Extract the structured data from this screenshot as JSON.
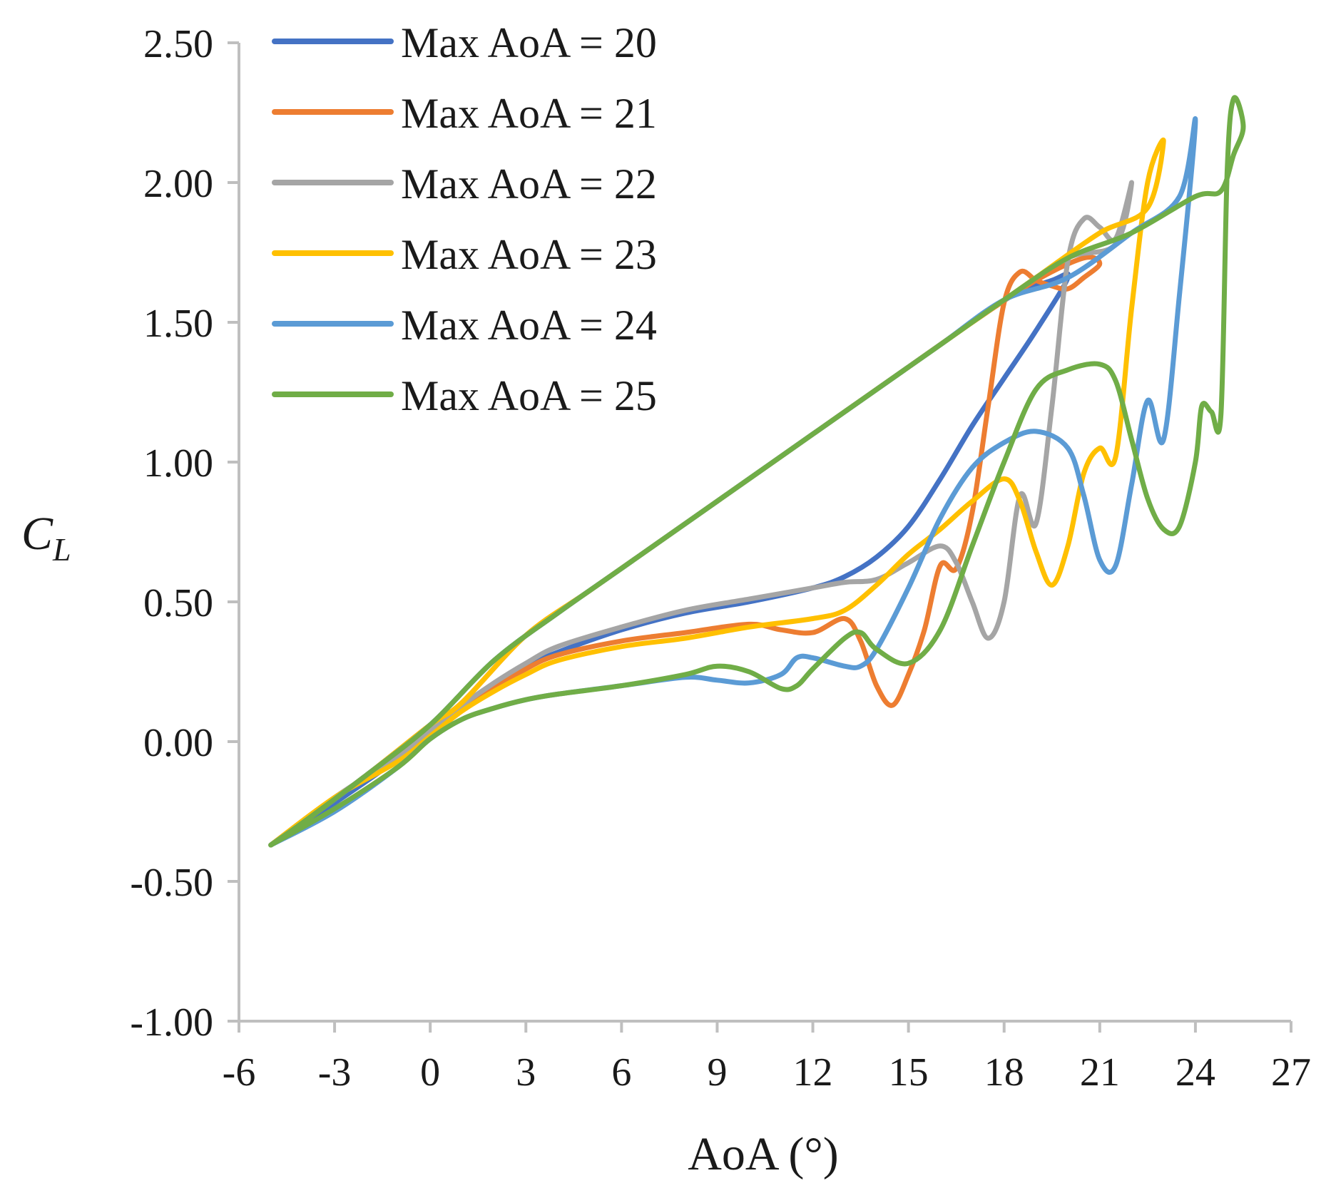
{
  "chart_data": {
    "type": "line",
    "title": "",
    "xlabel": "AoA (°)",
    "ylabel_main": "C",
    "ylabel_sub": "L",
    "xlim": [
      -6,
      27
    ],
    "ylim": [
      -1.0,
      2.5
    ],
    "x_ticks": [
      -6,
      -3,
      0,
      3,
      6,
      9,
      12,
      15,
      18,
      21,
      24,
      27
    ],
    "x_tick_labels": [
      "-6",
      "-3",
      "0",
      "3",
      "6",
      "9",
      "12",
      "15",
      "18",
      "21",
      "24",
      "27"
    ],
    "y_ticks": [
      -1.0,
      -0.5,
      0.0,
      0.5,
      1.0,
      1.5,
      2.0,
      2.5
    ],
    "y_tick_labels": [
      "-1.00",
      "-0.50",
      "0.00",
      "0.50",
      "1.00",
      "1.50",
      "2.00",
      "2.50"
    ],
    "grid": false,
    "legend_position": "top-left",
    "series": [
      {
        "name": "Max AoA = 20",
        "color": "#4472C4",
        "x": [
          -5,
          -3,
          -1,
          0,
          1,
          2,
          3,
          4,
          6,
          8,
          10,
          12,
          13,
          14,
          15,
          16,
          17,
          18,
          19,
          20,
          19.5,
          18,
          16,
          14,
          12,
          10,
          8,
          6,
          4,
          2,
          0,
          -2,
          -4,
          -5
        ],
        "y": [
          -0.37,
          -0.22,
          -0.06,
          0.03,
          0.12,
          0.2,
          0.27,
          0.32,
          0.4,
          0.46,
          0.5,
          0.55,
          0.59,
          0.66,
          0.77,
          0.94,
          1.13,
          1.3,
          1.47,
          1.66,
          1.65,
          1.58,
          1.42,
          1.26,
          1.1,
          0.94,
          0.78,
          0.62,
          0.46,
          0.29,
          0.06,
          -0.12,
          -0.29,
          -0.37
        ]
      },
      {
        "name": "Max AoA = 21",
        "color": "#ED7D31",
        "x": [
          -5,
          -3,
          -1,
          0,
          1,
          2,
          3,
          4,
          6,
          8,
          10,
          11,
          12,
          13,
          13.5,
          14,
          14.5,
          15,
          15.5,
          16,
          16.5,
          17,
          17.5,
          18,
          18.5,
          19,
          19.5,
          20,
          20.5,
          21,
          20.5,
          19,
          17,
          15,
          13,
          11,
          9,
          7,
          5,
          3,
          1,
          0,
          -2,
          -4,
          -5
        ],
        "y": [
          -0.37,
          -0.2,
          -0.06,
          0.03,
          0.12,
          0.19,
          0.26,
          0.31,
          0.36,
          0.39,
          0.42,
          0.4,
          0.39,
          0.44,
          0.36,
          0.2,
          0.13,
          0.24,
          0.4,
          0.63,
          0.62,
          0.82,
          1.2,
          1.57,
          1.68,
          1.65,
          1.63,
          1.62,
          1.66,
          1.71,
          1.73,
          1.65,
          1.5,
          1.34,
          1.18,
          1.02,
          0.86,
          0.7,
          0.54,
          0.38,
          0.14,
          0.06,
          -0.12,
          -0.29,
          -0.37
        ]
      },
      {
        "name": "Max AoA = 22",
        "color": "#A5A5A5",
        "x": [
          -5,
          -3,
          -1,
          0,
          1,
          2,
          3,
          4,
          6,
          8,
          10,
          12,
          13,
          14,
          15,
          16,
          16.5,
          17,
          17.5,
          18,
          18.5,
          19,
          19.5,
          20,
          20.5,
          21,
          21.5,
          22,
          21.5,
          20,
          18,
          16,
          14,
          12,
          10,
          8,
          6,
          4,
          2,
          0,
          -2,
          -4,
          -5
        ],
        "y": [
          -0.37,
          -0.2,
          -0.05,
          0.04,
          0.13,
          0.21,
          0.28,
          0.34,
          0.41,
          0.47,
          0.51,
          0.55,
          0.57,
          0.58,
          0.64,
          0.7,
          0.64,
          0.5,
          0.37,
          0.5,
          0.88,
          0.78,
          1.2,
          1.72,
          1.87,
          1.84,
          1.8,
          2.0,
          1.78,
          1.73,
          1.58,
          1.42,
          1.26,
          1.1,
          0.94,
          0.78,
          0.62,
          0.46,
          0.29,
          0.06,
          -0.12,
          -0.29,
          -0.37
        ]
      },
      {
        "name": "Max AoA = 23",
        "color": "#FFC000",
        "x": [
          -5,
          -3,
          -1,
          0,
          1,
          2,
          3,
          4,
          6,
          8,
          10,
          12,
          13,
          14,
          15,
          16,
          17,
          18,
          18.5,
          19,
          19.5,
          20,
          20.5,
          21,
          21.5,
          22,
          22.5,
          23,
          22.5,
          21,
          19,
          17,
          15,
          13,
          11,
          9,
          7,
          5,
          3,
          1,
          0,
          -2,
          -4,
          -5
        ],
        "y": [
          -0.37,
          -0.2,
          -0.07,
          0.02,
          0.11,
          0.18,
          0.24,
          0.29,
          0.34,
          0.37,
          0.41,
          0.44,
          0.47,
          0.56,
          0.67,
          0.76,
          0.86,
          0.94,
          0.86,
          0.68,
          0.56,
          0.7,
          0.96,
          1.05,
          1.02,
          1.55,
          2.0,
          2.15,
          1.91,
          1.82,
          1.66,
          1.5,
          1.34,
          1.18,
          1.02,
          0.86,
          0.7,
          0.54,
          0.38,
          0.14,
          0.06,
          -0.12,
          -0.29,
          -0.37
        ]
      },
      {
        "name": "Max AoA = 24",
        "color": "#5B9BD5",
        "x": [
          -5,
          -3,
          -1,
          0,
          1,
          2,
          3,
          4,
          6,
          8,
          9,
          10,
          11,
          11.5,
          12,
          13,
          13.5,
          14,
          15,
          16,
          17,
          18,
          19,
          20,
          20.5,
          21,
          21.5,
          22,
          22.5,
          23,
          23.5,
          24,
          23.5,
          22,
          20,
          18,
          16,
          14,
          12,
          10,
          8,
          6,
          4,
          2,
          0,
          -2,
          -4,
          -5
        ],
        "y": [
          -0.37,
          -0.25,
          -0.09,
          0.01,
          0.08,
          0.12,
          0.15,
          0.17,
          0.2,
          0.23,
          0.22,
          0.21,
          0.24,
          0.3,
          0.3,
          0.27,
          0.27,
          0.33,
          0.55,
          0.8,
          0.98,
          1.07,
          1.11,
          1.05,
          0.88,
          0.65,
          0.63,
          0.92,
          1.22,
          1.08,
          1.6,
          2.22,
          1.95,
          1.82,
          1.66,
          1.58,
          1.42,
          1.26,
          1.1,
          0.94,
          0.78,
          0.62,
          0.46,
          0.29,
          0.06,
          -0.12,
          -0.29,
          -0.37
        ]
      },
      {
        "name": "Max AoA = 25",
        "color": "#70AD47",
        "x": [
          -5,
          -3,
          -1,
          0,
          1,
          2,
          3,
          4,
          6,
          8,
          9,
          10,
          11,
          11.5,
          12,
          13,
          13.5,
          14,
          15,
          16,
          17,
          18,
          19,
          20,
          21,
          21.5,
          22,
          22.5,
          23,
          23.5,
          24,
          24.2,
          24.5,
          24.8,
          25,
          25.2,
          25.5,
          25.2,
          24.8,
          24,
          22,
          20,
          18,
          16,
          14,
          12,
          10,
          8,
          6,
          4,
          2,
          0,
          -2,
          -4,
          -5
        ],
        "y": [
          -0.37,
          -0.24,
          -0.09,
          0.01,
          0.08,
          0.12,
          0.15,
          0.17,
          0.2,
          0.24,
          0.27,
          0.25,
          0.19,
          0.2,
          0.26,
          0.37,
          0.39,
          0.33,
          0.28,
          0.4,
          0.7,
          1.0,
          1.26,
          1.33,
          1.35,
          1.29,
          1.08,
          0.87,
          0.76,
          0.77,
          1.0,
          1.2,
          1.18,
          1.17,
          2.05,
          2.3,
          2.2,
          2.1,
          1.97,
          1.95,
          1.82,
          1.73,
          1.58,
          1.42,
          1.26,
          1.1,
          0.94,
          0.78,
          0.62,
          0.46,
          0.29,
          0.06,
          -0.12,
          -0.29,
          -0.37
        ]
      }
    ]
  }
}
